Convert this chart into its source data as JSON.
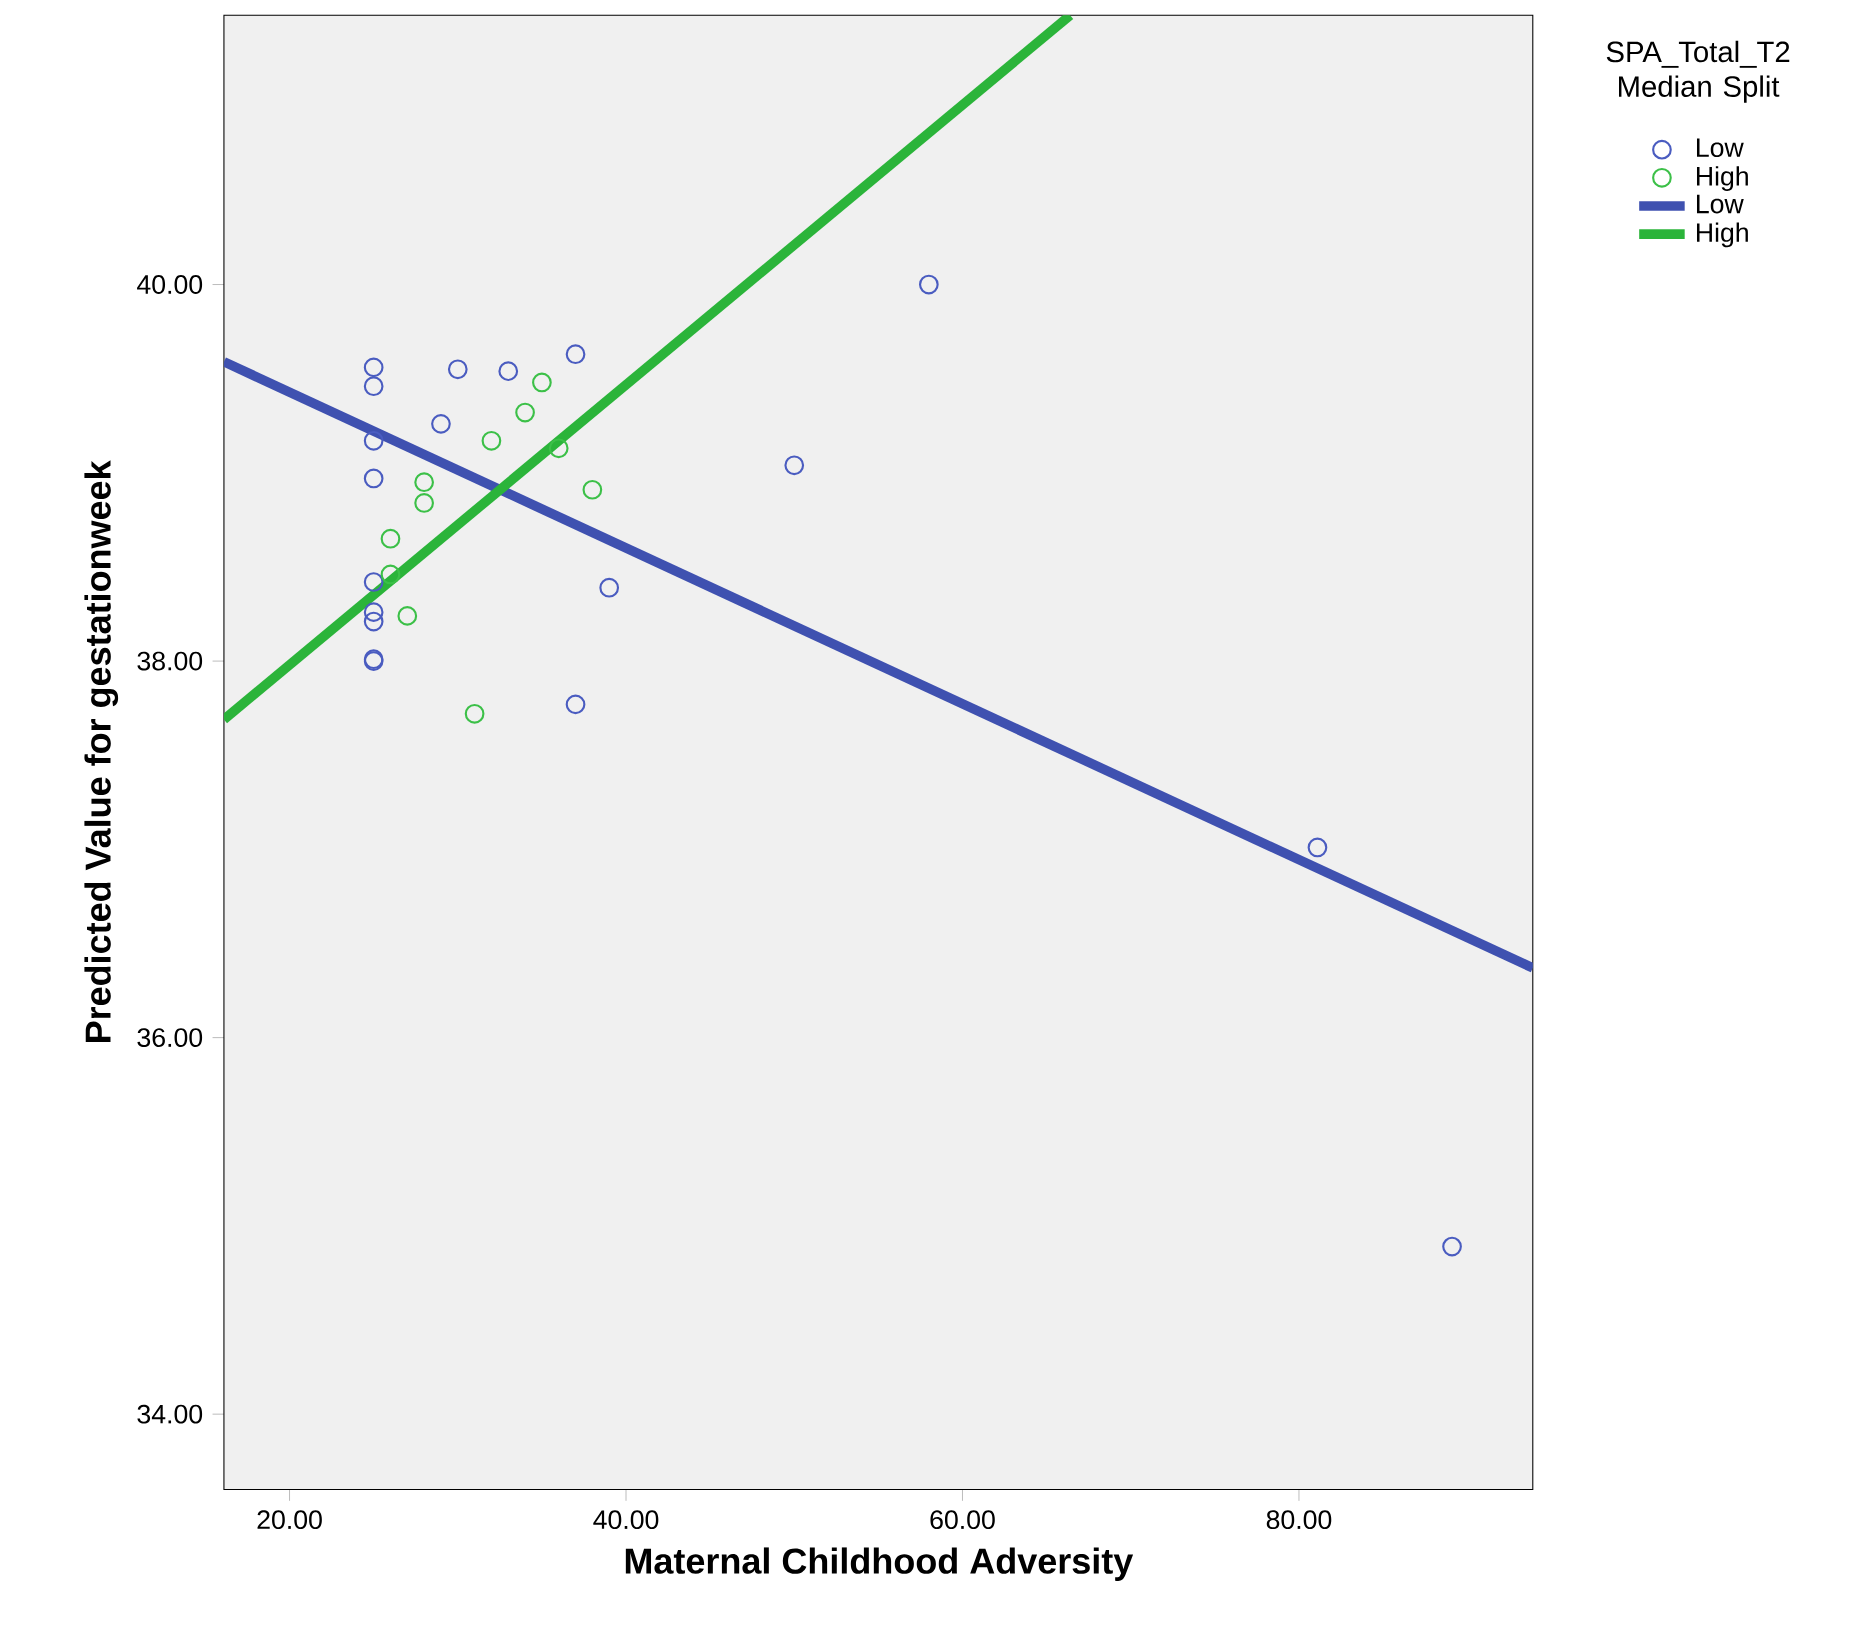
{
  "chart_data": {
    "type": "scatter",
    "xlabel": "Maternal Childhood Adversity",
    "ylabel": "Predicted Value for gestationweek",
    "legend_title": "SPA_Total_T2 Median Split",
    "legend": "top right",
    "xlim": [
      16.1,
      93.9
    ],
    "ylim": [
      33.6,
      41.43
    ],
    "xticks": [
      {
        "value": 20,
        "label": "20.00"
      },
      {
        "value": 40,
        "label": "40.00"
      },
      {
        "value": 60,
        "label": "60.00"
      },
      {
        "value": 80,
        "label": "80.00"
      }
    ],
    "yticks": [
      {
        "value": 34,
        "label": "34.00"
      },
      {
        "value": 36,
        "label": "36.00"
      },
      {
        "value": 38,
        "label": "38.00"
      },
      {
        "value": 40,
        "label": "40.00"
      }
    ],
    "series": [
      {
        "name": "Low",
        "marker": "circle",
        "color": "#4a5cc0",
        "x": [
          25,
          25,
          30,
          33,
          37,
          29,
          25,
          25,
          25,
          25,
          25,
          25,
          25,
          39,
          37,
          58,
          50,
          81.1,
          89.1
        ],
        "values": [
          39.56,
          39.46,
          39.55,
          39.54,
          39.63,
          39.26,
          39.17,
          38.97,
          38.42,
          38.26,
          38.21,
          38.01,
          38.0,
          38.39,
          37.77,
          40.0,
          39.04,
          37.01,
          34.89
        ]
      },
      {
        "name": "High",
        "marker": "circle",
        "color": "#3cc048",
        "x": [
          35,
          34,
          32,
          36,
          38,
          28,
          28,
          26,
          26,
          27,
          31
        ],
        "values": [
          39.48,
          39.32,
          39.17,
          39.13,
          38.91,
          38.95,
          38.84,
          38.65,
          38.46,
          38.24,
          37.72
        ]
      },
      {
        "name": "Low",
        "type": "line",
        "marker": "none",
        "color": "#3f51b0",
        "x": [
          16.1,
          93.9
        ],
        "values": [
          39.59,
          36.37
        ]
      },
      {
        "name": "High",
        "type": "line",
        "marker": "none",
        "color": "#2bb43a",
        "x": [
          16.1,
          66.4
        ],
        "values": [
          37.69,
          41.43
        ]
      }
    ]
  }
}
